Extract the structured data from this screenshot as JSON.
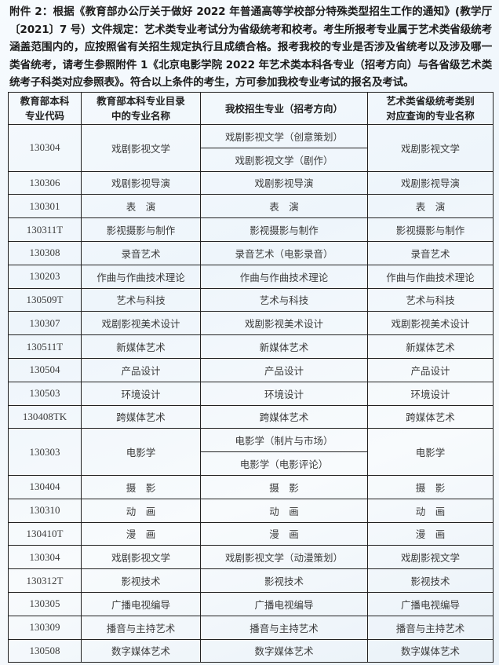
{
  "intro": "附件 2：根据《教育部办公厅关于做好 2022 年普通高等学校部分特殊类型招生工作的通知》(教学厅〔2021〕7 号）文件规定：艺术类专业考试分为省级统考和校考。考生所报考专业属于艺术类省级统考涵盖范围内的，应按照省有关招生规定执行且成绩合格。报考我校的专业是否涉及省统考以及涉及哪一类省统考，请考生参照附件 1《北京电影学院 2022 年艺术类本科各专业（招考方向）与各省级艺术类统考子科类对应参照表》。符合以上条件的考生，方可参加我校专业考试的报名及考试。",
  "table": {
    "headers": [
      "教育部本科\n专业代码",
      "教育部本科专业目录\n中的专业名称",
      "我校招生专业（招考方向）",
      "艺术类省级统考类别\n对应查询的专业名称"
    ],
    "rows": [
      {
        "code": "130304",
        "catalog": "戏剧影视文学",
        "majors": [
          "戏剧影视文学（创意策划）",
          "戏剧影视文学（剧作）"
        ],
        "category": "戏剧影视文学"
      },
      {
        "code": "130306",
        "catalog": "戏剧影视导演",
        "majors": [
          "戏剧影视导演"
        ],
        "category": "戏剧影视导演"
      },
      {
        "code": "130301",
        "catalog": "表　演",
        "majors": [
          "表　演"
        ],
        "category": "表　演"
      },
      {
        "code": "130311T",
        "catalog": "影视摄影与制作",
        "majors": [
          "影视摄影与制作"
        ],
        "category": "影视摄影与制作"
      },
      {
        "code": "130308",
        "catalog": "录音艺术",
        "majors": [
          "录音艺术（电影录音）"
        ],
        "category": "录音艺术"
      },
      {
        "code": "130203",
        "catalog": "作曲与作曲技术理论",
        "majors": [
          "作曲与作曲技术理论"
        ],
        "category": "作曲与作曲技术理论"
      },
      {
        "code": "130509T",
        "catalog": "艺术与科技",
        "majors": [
          "艺术与科技"
        ],
        "category": "艺术与科技"
      },
      {
        "code": "130307",
        "catalog": "戏剧影视美术设计",
        "majors": [
          "戏剧影视美术设计"
        ],
        "category": "戏剧影视美术设计"
      },
      {
        "code": "130511T",
        "catalog": "新媒体艺术",
        "majors": [
          "新媒体艺术"
        ],
        "category": "新媒体艺术"
      },
      {
        "code": "130504",
        "catalog": "产品设计",
        "majors": [
          "产品设计"
        ],
        "category": "产品设计"
      },
      {
        "code": "130503",
        "catalog": "环境设计",
        "majors": [
          "环境设计"
        ],
        "category": "环境设计"
      },
      {
        "code": "130408TK",
        "catalog": "跨媒体艺术",
        "majors": [
          "跨媒体艺术"
        ],
        "category": "跨媒体艺术"
      },
      {
        "code": "130303",
        "catalog": "电影学",
        "majors": [
          "电影学（制片与市场）",
          "电影学（电影评论）"
        ],
        "category": "电影学"
      },
      {
        "code": "130404",
        "catalog": "摄　影",
        "majors": [
          "摄　影"
        ],
        "category": "摄　影"
      },
      {
        "code": "130310",
        "catalog": "动　画",
        "majors": [
          "动　画"
        ],
        "category": "动　画"
      },
      {
        "code": "130410T",
        "catalog": "漫　画",
        "majors": [
          "漫　画"
        ],
        "category": "漫　画"
      },
      {
        "code": "130304",
        "catalog": "戏剧影视文学",
        "majors": [
          "戏剧影视文学（动漫策划）"
        ],
        "category": "戏剧影视文学"
      },
      {
        "code": "130312T",
        "catalog": "影视技术",
        "majors": [
          "影视技术"
        ],
        "category": "影视技术"
      },
      {
        "code": "130305",
        "catalog": "广播电视编导",
        "majors": [
          "广播电视编导"
        ],
        "category": "广播电视编导"
      },
      {
        "code": "130309",
        "catalog": "播音与主持艺术",
        "majors": [
          "播音与主持艺术"
        ],
        "category": "播音与主持艺术"
      },
      {
        "code": "130508",
        "catalog": "数字媒体艺术",
        "majors": [
          "数字媒体艺术"
        ],
        "category": "数字媒体艺术"
      }
    ]
  }
}
